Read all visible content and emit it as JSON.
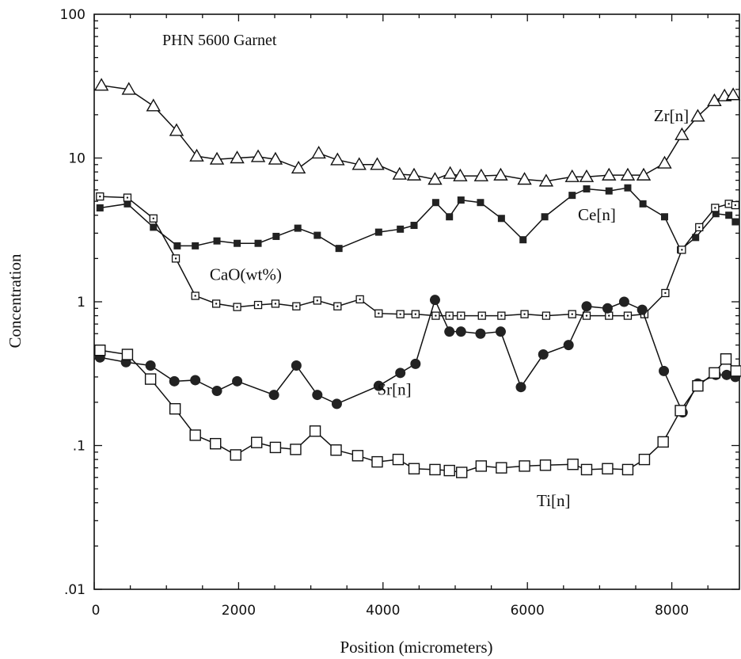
{
  "chart_data": {
    "type": "line",
    "title": "PHN 5600 Garnet",
    "xlabel": "Position (micrometers)",
    "ylabel": "Concentration",
    "xlim": [
      0,
      9000
    ],
    "ylim": [
      0.01,
      100
    ],
    "yscale": "log",
    "x_ticks": [
      0,
      2000,
      4000,
      6000,
      8000
    ],
    "x_tick_labels": [
      "0",
      "2000",
      "4000",
      "6000",
      "8000"
    ],
    "y_ticks": [
      0.01,
      0.1,
      1,
      10,
      100
    ],
    "y_tick_labels": [
      ".01",
      ".1",
      "1",
      "10",
      "100"
    ],
    "grid": false,
    "series": [
      {
        "name": "Zr[n]",
        "marker": "open-triangle",
        "x": [
          100,
          480,
          820,
          1140,
          1420,
          1700,
          1980,
          2270,
          2510,
          2830,
          3110,
          3370,
          3670,
          3920,
          4230,
          4430,
          4720,
          4930,
          5070,
          5360,
          5630,
          5960,
          6260,
          6620,
          6820,
          7130,
          7390,
          7610,
          7900,
          8140,
          8360,
          8590,
          8730,
          8850
        ],
        "values": [
          32,
          30,
          23,
          15.5,
          10.3,
          9.8,
          10.0,
          10.2,
          9.8,
          8.5,
          10.8,
          9.7,
          9.0,
          9.0,
          7.7,
          7.6,
          7.1,
          7.8,
          7.5,
          7.5,
          7.6,
          7.1,
          6.9,
          7.4,
          7.4,
          7.6,
          7.6,
          7.6,
          9.2,
          14.5,
          19.5,
          25,
          27,
          27.5
        ]
      },
      {
        "name": "Ce[n]",
        "marker": "filled-square",
        "x": [
          80,
          460,
          820,
          1150,
          1400,
          1700,
          1980,
          2270,
          2520,
          2820,
          3090,
          3390,
          3940,
          4240,
          4430,
          4730,
          4920,
          5080,
          5350,
          5640,
          5940,
          6240,
          6620,
          6820,
          7130,
          7390,
          7600,
          7900,
          8120,
          8330,
          8610,
          8790,
          8880
        ],
        "values": [
          4.5,
          4.8,
          3.3,
          2.45,
          2.45,
          2.65,
          2.55,
          2.55,
          2.85,
          3.25,
          2.9,
          2.35,
          3.05,
          3.2,
          3.4,
          4.9,
          3.9,
          5.1,
          4.9,
          3.8,
          2.7,
          3.9,
          5.5,
          6.1,
          5.9,
          6.2,
          4.8,
          3.9,
          2.3,
          2.8,
          4.1,
          4.0,
          3.6
        ]
      },
      {
        "name": "CaO(wt%)",
        "marker": "open-square-dot",
        "x": [
          80,
          460,
          820,
          1130,
          1400,
          1690,
          1980,
          2270,
          2510,
          2800,
          3090,
          3370,
          3680,
          3940,
          4240,
          4450,
          4730,
          4920,
          5080,
          5370,
          5640,
          5960,
          6260,
          6620,
          6820,
          7130,
          7390,
          7620,
          7910,
          8140,
          8380,
          8600,
          8790,
          8880
        ],
        "values": [
          5.4,
          5.3,
          3.8,
          2.0,
          1.1,
          0.97,
          0.92,
          0.95,
          0.97,
          0.93,
          1.02,
          0.93,
          1.04,
          0.83,
          0.82,
          0.82,
          0.8,
          0.8,
          0.8,
          0.8,
          0.8,
          0.82,
          0.8,
          0.82,
          0.8,
          0.8,
          0.8,
          0.82,
          1.15,
          2.3,
          3.3,
          4.5,
          4.8,
          4.7
        ]
      },
      {
        "name": "Sr[n]",
        "marker": "filled-circle",
        "x": [
          80,
          440,
          780,
          1110,
          1400,
          1700,
          1980,
          2490,
          2800,
          3090,
          3360,
          3940,
          4240,
          4450,
          4720,
          4920,
          5080,
          5350,
          5630,
          5910,
          6220,
          6570,
          6820,
          7110,
          7340,
          7590,
          7890,
          8150,
          8360,
          8610,
          8760,
          8880
        ],
        "values": [
          0.41,
          0.38,
          0.36,
          0.28,
          0.285,
          0.24,
          0.28,
          0.225,
          0.36,
          0.225,
          0.195,
          0.26,
          0.32,
          0.37,
          1.03,
          0.62,
          0.62,
          0.6,
          0.62,
          0.255,
          0.43,
          0.5,
          0.93,
          0.9,
          1.0,
          0.88,
          0.33,
          0.17,
          0.27,
          0.31,
          0.31,
          0.3
        ]
      },
      {
        "name": "Ti[n]",
        "marker": "open-square",
        "x": [
          80,
          460,
          780,
          1120,
          1400,
          1680,
          1960,
          2250,
          2510,
          2790,
          3060,
          3350,
          3650,
          3920,
          4210,
          4430,
          4720,
          4920,
          5090,
          5360,
          5640,
          5960,
          6250,
          6630,
          6820,
          7110,
          7390,
          7620,
          7880,
          8120,
          8360,
          8590,
          8750,
          8890
        ],
        "values": [
          0.46,
          0.43,
          0.29,
          0.18,
          0.118,
          0.103,
          0.086,
          0.105,
          0.097,
          0.094,
          0.126,
          0.093,
          0.085,
          0.077,
          0.08,
          0.069,
          0.068,
          0.067,
          0.065,
          0.072,
          0.07,
          0.072,
          0.073,
          0.074,
          0.068,
          0.069,
          0.068,
          0.08,
          0.106,
          0.175,
          0.26,
          0.32,
          0.4,
          0.33
        ]
      }
    ],
    "annotations": [
      {
        "text": "Zr[n]",
        "x": 7750,
        "y": 18
      },
      {
        "text": "Ce[n]",
        "x": 6700,
        "y": 3.7
      },
      {
        "text": "CaO(wt%)",
        "x": 1600,
        "y": 1.42
      },
      {
        "text": "Sr[n]",
        "x": 3920,
        "y": 0.225
      },
      {
        "text": "Ti[n]",
        "x": 6130,
        "y": 0.038
      }
    ]
  }
}
